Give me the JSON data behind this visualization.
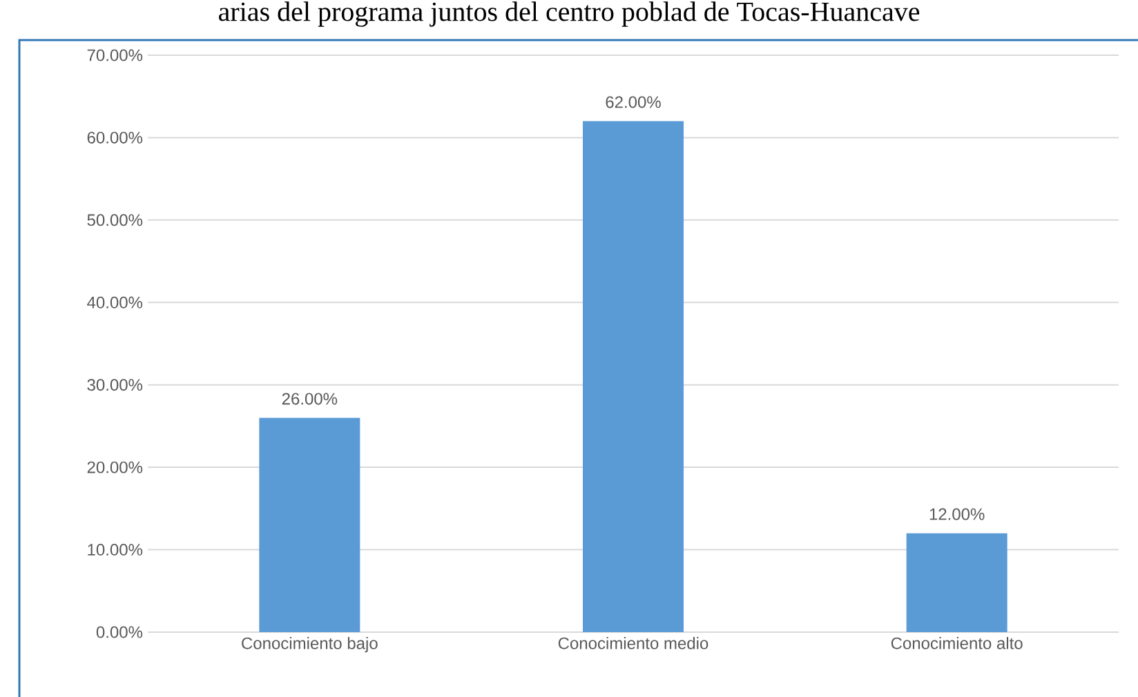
{
  "chart_data": {
    "type": "bar",
    "title": "arias del programa juntos del centro poblad de Tocas-Huancave",
    "categories": [
      "Conocimiento bajo",
      "Conocimiento medio",
      "Conocimiento alto"
    ],
    "values": [
      26,
      62,
      12
    ],
    "color": "#5b9bd5",
    "value_labels": [
      "26.00%",
      "62.00%",
      "12.00%"
    ],
    "ylim": [
      0,
      70
    ],
    "yticks": [
      {
        "value": 0,
        "label": "0.00%"
      },
      {
        "value": 10,
        "label": "10.00%"
      },
      {
        "value": 20,
        "label": "20.00%"
      },
      {
        "value": 30,
        "label": "30.00%"
      },
      {
        "value": 40,
        "label": "40.00%"
      },
      {
        "value": 50,
        "label": "50.00%"
      },
      {
        "value": 60,
        "label": "60.00%"
      },
      {
        "value": 70,
        "label": "70.00%"
      }
    ],
    "grid": "y"
  }
}
